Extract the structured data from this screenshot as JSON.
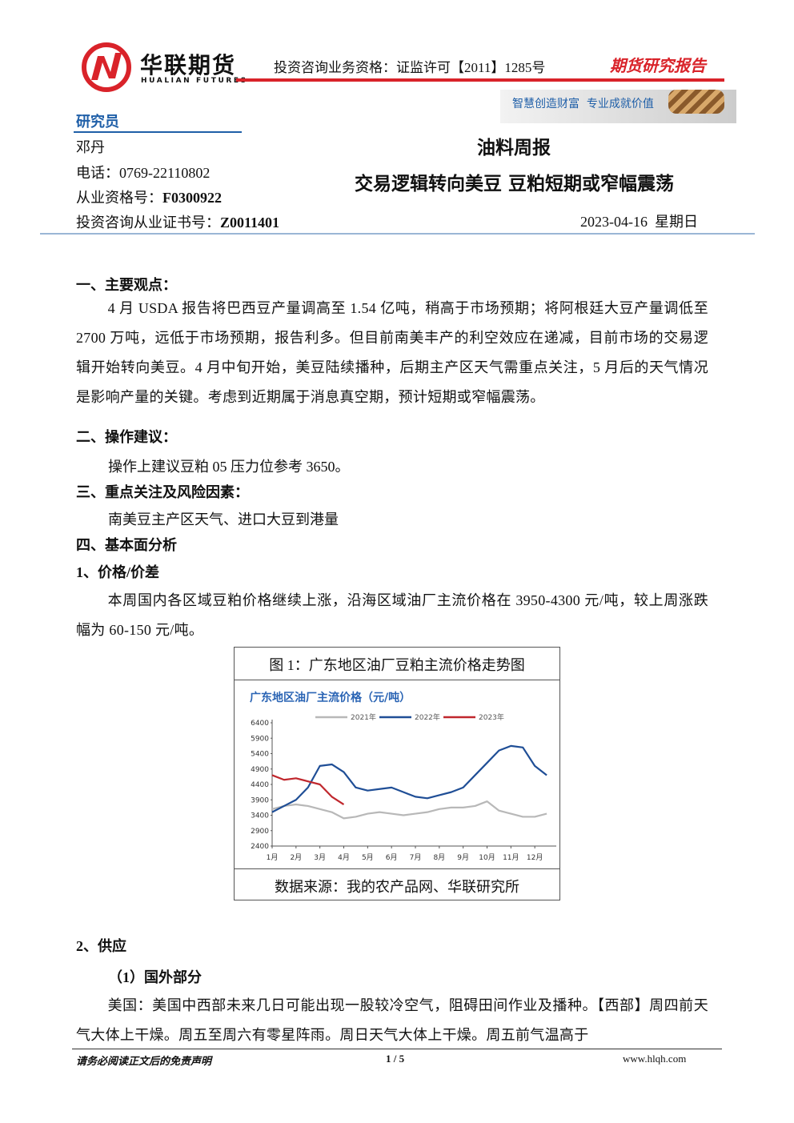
{
  "header": {
    "company": "华联期货",
    "company_en": "HUALIAN FUTURES",
    "qualification": "投资咨询业务资格：证监许可【2011】1285号",
    "report_type": "期货研究报告",
    "slogan": "智慧创造财富  专业成就价值"
  },
  "researcher": {
    "heading": "研究员",
    "name": "邓丹",
    "phone": "电话：0769-22110802",
    "license_label": "从业资格号：",
    "license": "F0300922",
    "cert_label": "投资咨询从业证书号：",
    "cert": "Z0011401"
  },
  "title": {
    "category": "油料周报",
    "headline": "交易逻辑转向美豆 豆粕短期或窄幅震荡",
    "date": "2023-04-16  星期日"
  },
  "blocks": [
    "一、主要观点：",
    "4 月 USDA 报告将巴西豆产量调高至 1.54 亿吨，稍高于市场预期；将阿根廷大豆产量调低至 2700 万吨，远低于市场预期，报告利多。但目前南美丰产的利空效应在递减，目前市场的交易逻辑开始转向美豆。4 月中旬开始，美豆陆续播种，后期主产区天气需重点关注，5 月后的天气情况是影响产量的关键。考虑到近期属于消息真空期，预计短期或窄幅震荡。",
    "二、操作建议：",
    "操作上建议豆粕 05 压力位参考 3650。",
    "三、重点关注及风险因素：",
    "南美豆主产区天气、进口大豆到港量",
    "四、基本面分析",
    "1、价格/价差",
    "本周国内各区域豆粕价格继续上涨，沿海区域油厂主流价格在 3950-4300 元/吨，较上周涨跌幅为 60-150 元/吨。",
    "2、供应",
    "（1）国外部分",
    "美国：美国中西部未来几日可能出现一股较冷空气，阻碍田间作业及播种。【西部】周四前天气大体上干燥。周五至周六有零星阵雨。周日天气大体上干燥。周五前气温高于"
  ],
  "figure": {
    "caption": "图 1：广东地区油厂豆粕主流价格走势图",
    "source": "数据来源：我的农产品网、华联研究所"
  },
  "chart_data": {
    "type": "line",
    "title": "广东地区油厂主流价格（元/吨）",
    "x": [
      1,
      1.5,
      2,
      2.5,
      3,
      3.5,
      4,
      4.5,
      5,
      5.5,
      6,
      6.5,
      7,
      7.5,
      8,
      8.5,
      9,
      9.5,
      10,
      10.5,
      11,
      11.5,
      12,
      12.5
    ],
    "xlim": [
      1,
      12.9
    ],
    "xticks": [
      {
        "value": 1,
        "label": "1月"
      },
      {
        "value": 2,
        "label": "2月"
      },
      {
        "value": 3,
        "label": "3月"
      },
      {
        "value": 4,
        "label": "4月"
      },
      {
        "value": 5,
        "label": "5月"
      },
      {
        "value": 6,
        "label": "6月"
      },
      {
        "value": 7,
        "label": "7月"
      },
      {
        "value": 8,
        "label": "8月"
      },
      {
        "value": 9,
        "label": "9月"
      },
      {
        "value": 10,
        "label": "10月"
      },
      {
        "value": 11,
        "label": "11月"
      },
      {
        "value": 12,
        "label": "12月"
      }
    ],
    "ylim": [
      2400,
      6400
    ],
    "yticks": [
      2400,
      2900,
      3400,
      3900,
      4400,
      4900,
      5400,
      5900,
      6400
    ],
    "series": [
      {
        "name": "2021年",
        "color": "#b8b8b8",
        "values": [
          3600,
          3700,
          3750,
          3700,
          3600,
          3500,
          3300,
          3350,
          3450,
          3500,
          3450,
          3400,
          3450,
          3500,
          3600,
          3650,
          3650,
          3700,
          3850,
          3550,
          3450,
          3350,
          3350,
          3450
        ]
      },
      {
        "name": "2022年",
        "color": "#1f4e96",
        "values": [
          3500,
          3700,
          3900,
          4300,
          5000,
          5050,
          4800,
          4300,
          4200,
          4250,
          4300,
          4150,
          4000,
          3950,
          4050,
          4150,
          4300,
          4700,
          5100,
          5500,
          5650,
          5600,
          5000,
          4700
        ]
      },
      {
        "name": "2023年",
        "color": "#c0272d",
        "values": [
          4700,
          4550,
          4600,
          4500,
          4400,
          4000,
          3750,
          null,
          null,
          null,
          null,
          null,
          null,
          null,
          null,
          null,
          null,
          null,
          null,
          null,
          null,
          null,
          null,
          null
        ]
      }
    ]
  },
  "footer": {
    "disclaimer": "请务必阅读正文后的免责声明",
    "page": "1 / 5",
    "site": "www.hlqh.com"
  }
}
